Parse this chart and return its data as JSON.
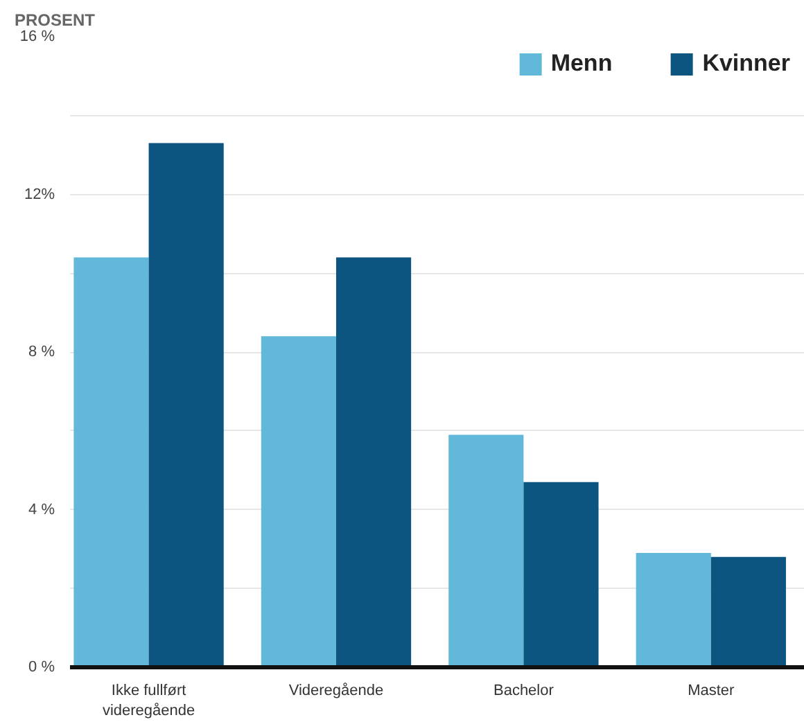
{
  "chart_data": {
    "type": "bar",
    "ylabel": "PROSENT",
    "categories": [
      "Ikke fullført videregående",
      "Videregående",
      "Bachelor",
      "Master"
    ],
    "series": [
      {
        "name": "Menn",
        "color": "#62b8d9",
        "values": [
          10.4,
          8.4,
          5.9,
          2.9
        ]
      },
      {
        "name": "Kvinner",
        "color": "#0b5580",
        "values": [
          13.3,
          10.4,
          4.7,
          2.8
        ]
      }
    ],
    "ylim": [
      0,
      16
    ],
    "yticks": [
      {
        "value": 0,
        "label": "0 %"
      },
      {
        "value": 2,
        "label": null
      },
      {
        "value": 4,
        "label": "4 %"
      },
      {
        "value": 6,
        "label": null
      },
      {
        "value": 8,
        "label": "8 %"
      },
      {
        "value": 10,
        "label": null
      },
      {
        "value": 12,
        "label": "12%"
      },
      {
        "value": 14,
        "label": null
      },
      {
        "value": 16,
        "label": "16 %"
      }
    ],
    "grid": "y",
    "legend": "top right"
  }
}
